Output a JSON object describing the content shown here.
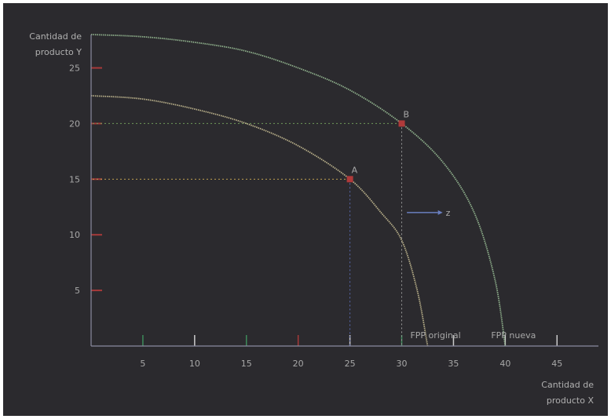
{
  "chart_data": {
    "type": "line",
    "title": "",
    "ylabel_line1": "Cantidad de",
    "ylabel_line2": "producto Y",
    "xlabel_line1": "Cantidad de",
    "xlabel_line2": "producto X",
    "x_ticks": [
      5,
      10,
      15,
      20,
      25,
      30,
      35,
      40,
      45
    ],
    "y_ticks": [
      5,
      10,
      15,
      20,
      25
    ],
    "xlim": [
      0,
      49
    ],
    "ylim": [
      0,
      28
    ],
    "grid": false,
    "series": [
      {
        "name": "FPP original",
        "color": "#b9b08a",
        "x": [
          0,
          5,
          10,
          15,
          20,
          25,
          28,
          30,
          31.5,
          32.5
        ],
        "y": [
          22.5,
          22.2,
          21.3,
          20,
          18,
          15,
          12,
          9.5,
          5,
          0
        ]
      },
      {
        "name": "FPP nueva",
        "color": "#8fb08c",
        "x": [
          0,
          5,
          10,
          15,
          20,
          25,
          30,
          34,
          37,
          39,
          40
        ],
        "y": [
          28,
          27.8,
          27.3,
          26.5,
          25,
          23,
          20,
          16.5,
          12,
          6,
          0
        ]
      }
    ],
    "points": [
      {
        "label": "A",
        "x": 25,
        "y": 15,
        "color": "#b03a3a"
      },
      {
        "label": "B",
        "x": 30,
        "y": 20,
        "color": "#b03a3a"
      }
    ],
    "annotation_arrow": {
      "label": "z",
      "x_from": 30.5,
      "x_to": 33.5,
      "y": 12
    }
  }
}
